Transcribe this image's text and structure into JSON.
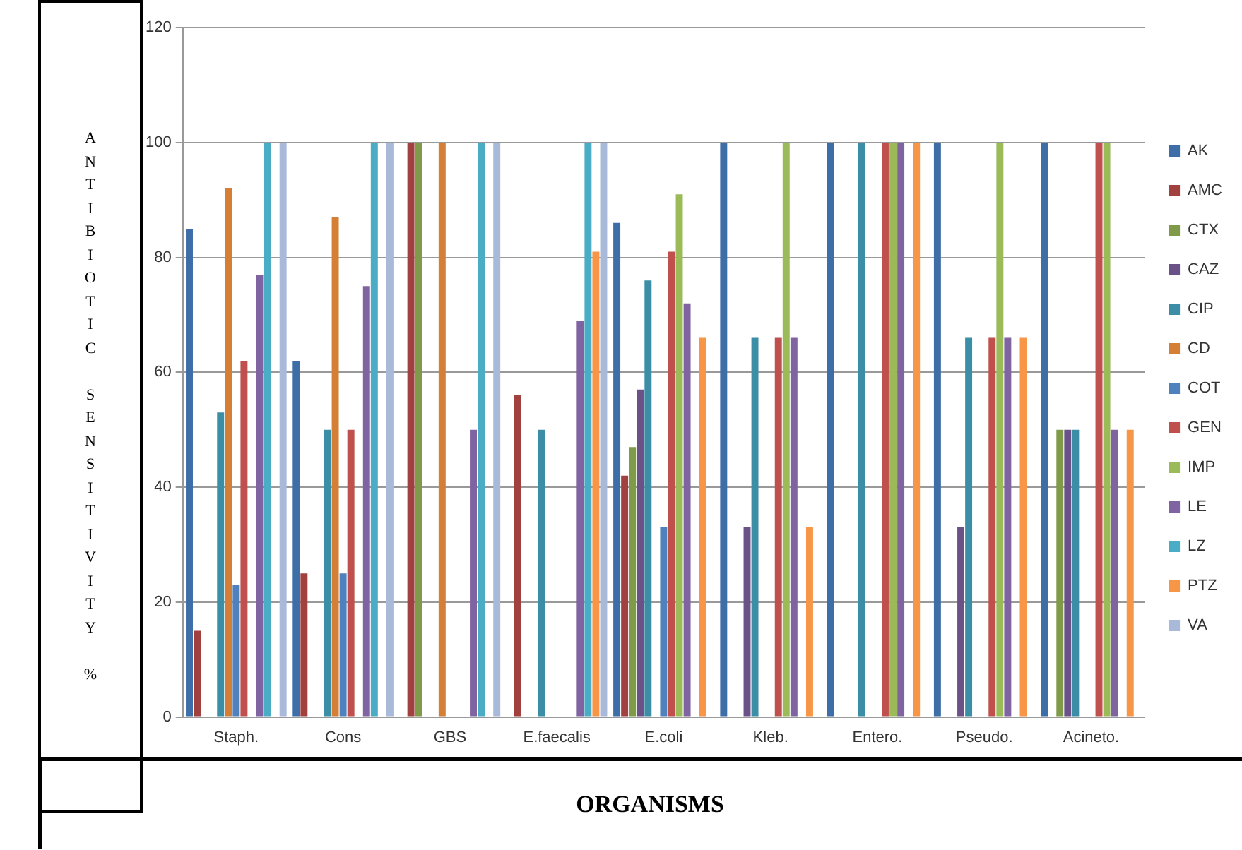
{
  "chart_data": {
    "type": "bar",
    "xlabel": "ORGANISMS",
    "ylabel": "ANTIBIOTIC SENSITIVITY %",
    "categories": [
      "Staph.",
      "Cons",
      "GBS",
      "E.faecalis",
      "E.coli",
      "Kleb.",
      "Entero.",
      "Pseudo.",
      "Acineto."
    ],
    "ylim": [
      0,
      120
    ],
    "yticks": [
      0,
      20,
      40,
      60,
      80,
      100,
      120
    ],
    "grid": "y",
    "legend": "right",
    "series": [
      {
        "name": "AK",
        "color": "#3d6ea8",
        "values": [
          85,
          62,
          null,
          null,
          86,
          100,
          100,
          100,
          100
        ]
      },
      {
        "name": "AMC",
        "color": "#a0413f",
        "values": [
          15,
          25,
          100,
          56,
          42,
          null,
          null,
          null,
          null
        ]
      },
      {
        "name": "CTX",
        "color": "#7f9a48",
        "values": [
          null,
          null,
          100,
          null,
          47,
          null,
          null,
          null,
          50
        ]
      },
      {
        "name": "CAZ",
        "color": "#6a5289",
        "values": [
          null,
          null,
          null,
          null,
          57,
          33,
          null,
          33,
          50
        ]
      },
      {
        "name": "CIP",
        "color": "#3b8ea5",
        "values": [
          53,
          50,
          null,
          50,
          76,
          66,
          100,
          66,
          50
        ]
      },
      {
        "name": "CD",
        "color": "#d47f35",
        "values": [
          92,
          87,
          100,
          null,
          null,
          null,
          null,
          null,
          null
        ]
      },
      {
        "name": "COT",
        "color": "#4f81bd",
        "values": [
          23,
          25,
          null,
          null,
          33,
          null,
          null,
          null,
          null
        ]
      },
      {
        "name": "GEN",
        "color": "#c0504d",
        "values": [
          62,
          50,
          null,
          null,
          81,
          66,
          100,
          66,
          100
        ]
      },
      {
        "name": "IMP",
        "color": "#9bbb59",
        "values": [
          null,
          null,
          null,
          null,
          91,
          100,
          100,
          100,
          100
        ]
      },
      {
        "name": "LE",
        "color": "#8064a2",
        "values": [
          77,
          75,
          50,
          69,
          72,
          66,
          100,
          66,
          50
        ]
      },
      {
        "name": "LZ",
        "color": "#4bacc6",
        "values": [
          100,
          100,
          100,
          100,
          null,
          null,
          null,
          null,
          null
        ]
      },
      {
        "name": "PTZ",
        "color": "#f79646",
        "values": [
          null,
          null,
          null,
          81,
          66,
          33,
          100,
          66,
          50
        ]
      },
      {
        "name": "VA",
        "color": "#a9b9d9",
        "values": [
          100,
          100,
          100,
          100,
          null,
          null,
          null,
          null,
          null
        ]
      }
    ]
  }
}
